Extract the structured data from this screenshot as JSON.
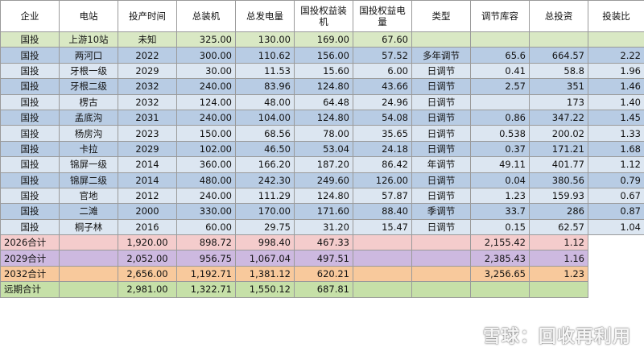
{
  "headers": [
    "企业",
    "电站",
    "投产时间",
    "总装机",
    "总发电量",
    "国投权益装机",
    "国投权益电量",
    "类型",
    "调节库容",
    "总投资",
    "投装比"
  ],
  "rows": [
    {
      "bg": "#d9e8c4",
      "cells": [
        "国投",
        "上游10站",
        "未知",
        "325.00",
        "130.00",
        "169.00",
        "67.60",
        "",
        "",
        "",
        ""
      ]
    },
    {
      "bg": "#b8cce4",
      "cells": [
        "国投",
        "两河口",
        "2022",
        "300.00",
        "110.62",
        "156.00",
        "57.52",
        "多年调节",
        "65.6",
        "664.57",
        "2.22"
      ]
    },
    {
      "bg": "#dce6f1",
      "cells": [
        "国投",
        "牙根一级",
        "2029",
        "30.00",
        "11.53",
        "15.60",
        "6.00",
        "日调节",
        "0.41",
        "58.8",
        "1.96"
      ]
    },
    {
      "bg": "#b8cce4",
      "cells": [
        "国投",
        "牙根二级",
        "2032",
        "240.00",
        "83.96",
        "124.80",
        "43.66",
        "日调节",
        "2.57",
        "351",
        "1.46"
      ]
    },
    {
      "bg": "#dce6f1",
      "cells": [
        "国投",
        "楞古",
        "2032",
        "124.00",
        "48.00",
        "64.48",
        "24.96",
        "日调节",
        "",
        "173",
        "1.40"
      ]
    },
    {
      "bg": "#b8cce4",
      "cells": [
        "国投",
        "孟底沟",
        "2031",
        "240.00",
        "104.00",
        "124.80",
        "54.08",
        "日调节",
        "0.86",
        "347.22",
        "1.45"
      ]
    },
    {
      "bg": "#dce6f1",
      "cells": [
        "国投",
        "杨房沟",
        "2023",
        "150.00",
        "68.56",
        "78.00",
        "35.65",
        "日调节",
        "0.538",
        "200.02",
        "1.33"
      ]
    },
    {
      "bg": "#b8cce4",
      "cells": [
        "国投",
        "卡拉",
        "2029",
        "102.00",
        "46.50",
        "53.04",
        "24.18",
        "日调节",
        "0.37",
        "171.21",
        "1.68"
      ]
    },
    {
      "bg": "#dce6f1",
      "cells": [
        "国投",
        "锦屏一级",
        "2014",
        "360.00",
        "166.20",
        "187.20",
        "86.42",
        "年调节",
        "49.11",
        "401.77",
        "1.12"
      ]
    },
    {
      "bg": "#b8cce4",
      "cells": [
        "国投",
        "锦屏二级",
        "2014",
        "480.00",
        "242.30",
        "249.60",
        "126.00",
        "日调节",
        "0.04",
        "380.56",
        "0.79"
      ]
    },
    {
      "bg": "#dce6f1",
      "cells": [
        "国投",
        "官地",
        "2012",
        "240.00",
        "111.29",
        "124.80",
        "57.87",
        "日调节",
        "1.23",
        "159.93",
        "0.67"
      ]
    },
    {
      "bg": "#b8cce4",
      "cells": [
        "国投",
        "二滩",
        "2000",
        "330.00",
        "170.00",
        "171.60",
        "88.40",
        "季调节",
        "33.7",
        "286",
        "0.87"
      ]
    },
    {
      "bg": "#dce6f1",
      "cells": [
        "国投",
        "桐子林",
        "2016",
        "60.00",
        "29.75",
        "31.20",
        "15.47",
        "日调节",
        "0.15",
        "62.57",
        "1.04"
      ]
    }
  ],
  "totals": [
    {
      "bg": "#f4cccc",
      "label": "2026合计",
      "cells": [
        "",
        "1,920.00",
        "898.72",
        "998.40",
        "467.33",
        "",
        "",
        "2,155.42",
        "1.12"
      ]
    },
    {
      "bg": "#cdb9e0",
      "label": "2029合计",
      "cells": [
        "",
        "2,052.00",
        "956.75",
        "1,067.04",
        "497.51",
        "",
        "",
        "2,385.43",
        "1.16"
      ]
    },
    {
      "bg": "#f8c99c",
      "label": "2032合计",
      "cells": [
        "",
        "2,656.00",
        "1,192.71",
        "1,381.12",
        "620.21",
        "",
        "",
        "3,256.65",
        "1.23"
      ]
    },
    {
      "bg": "#c6e0a8",
      "label": "远期合计",
      "cells": [
        "",
        "2,981.00",
        "1,322.71",
        "1,550.12",
        "687.81",
        "",
        "",
        "",
        ""
      ]
    }
  ],
  "watermark": {
    "text": "雪球：回收再利用",
    "logo_icon": "snowball-logo-icon"
  }
}
